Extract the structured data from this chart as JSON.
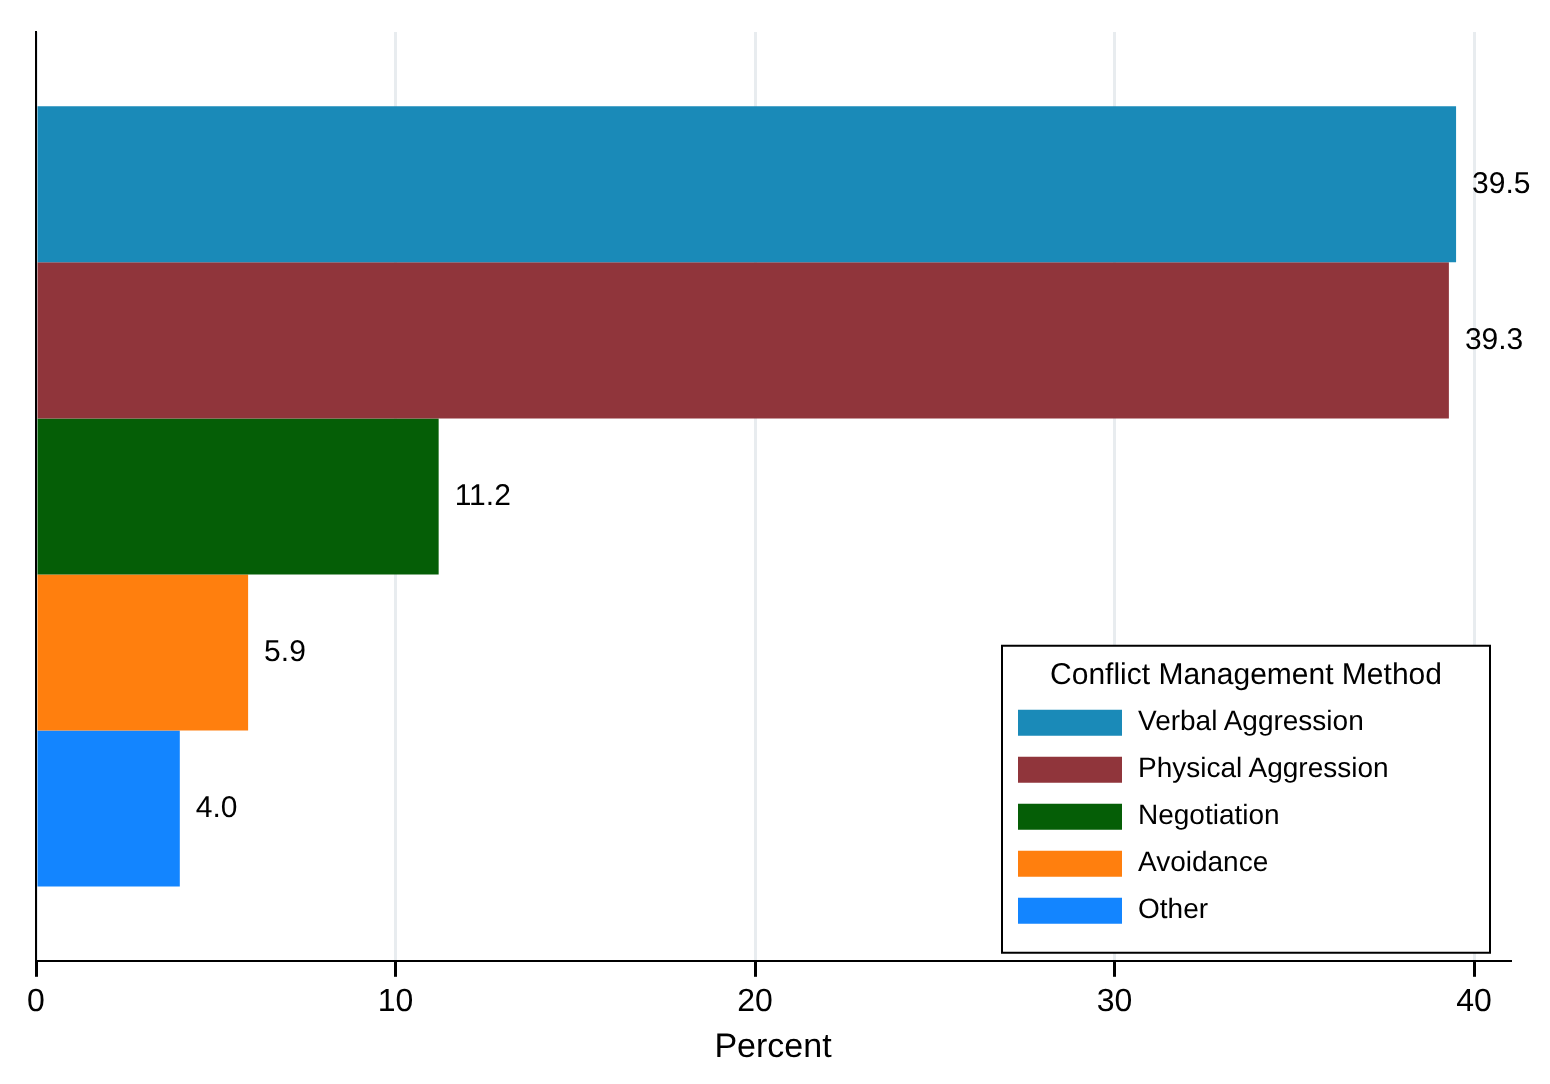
{
  "chart_data": {
    "type": "bar",
    "orientation": "horizontal",
    "categories": [
      null
    ],
    "series": [
      {
        "name": "Verbal Aggression",
        "color": "#1a8ab8",
        "values": [
          39.5
        ],
        "value_labels": [
          "39.5"
        ]
      },
      {
        "name": "Physical Aggression",
        "color": "#90353b",
        "values": [
          39.3
        ],
        "value_labels": [
          "39.3"
        ]
      },
      {
        "name": "Negotiation",
        "color": "#055e06",
        "values": [
          11.2
        ],
        "value_labels": [
          "11.2"
        ]
      },
      {
        "name": "Avoidance",
        "color": "#ff7f0e",
        "values": [
          5.9
        ],
        "value_labels": [
          "5.9"
        ]
      },
      {
        "name": "Other",
        "color": "#1385ff",
        "values": [
          4.0
        ],
        "value_labels": [
          "4.0"
        ]
      }
    ],
    "xlim": [
      0,
      41
    ],
    "xticks": [
      0,
      10,
      20,
      30,
      40
    ],
    "xlabel": "Percent",
    "legend_title": "Conflict Management Method",
    "legend": "bottom right",
    "grid": "x"
  }
}
